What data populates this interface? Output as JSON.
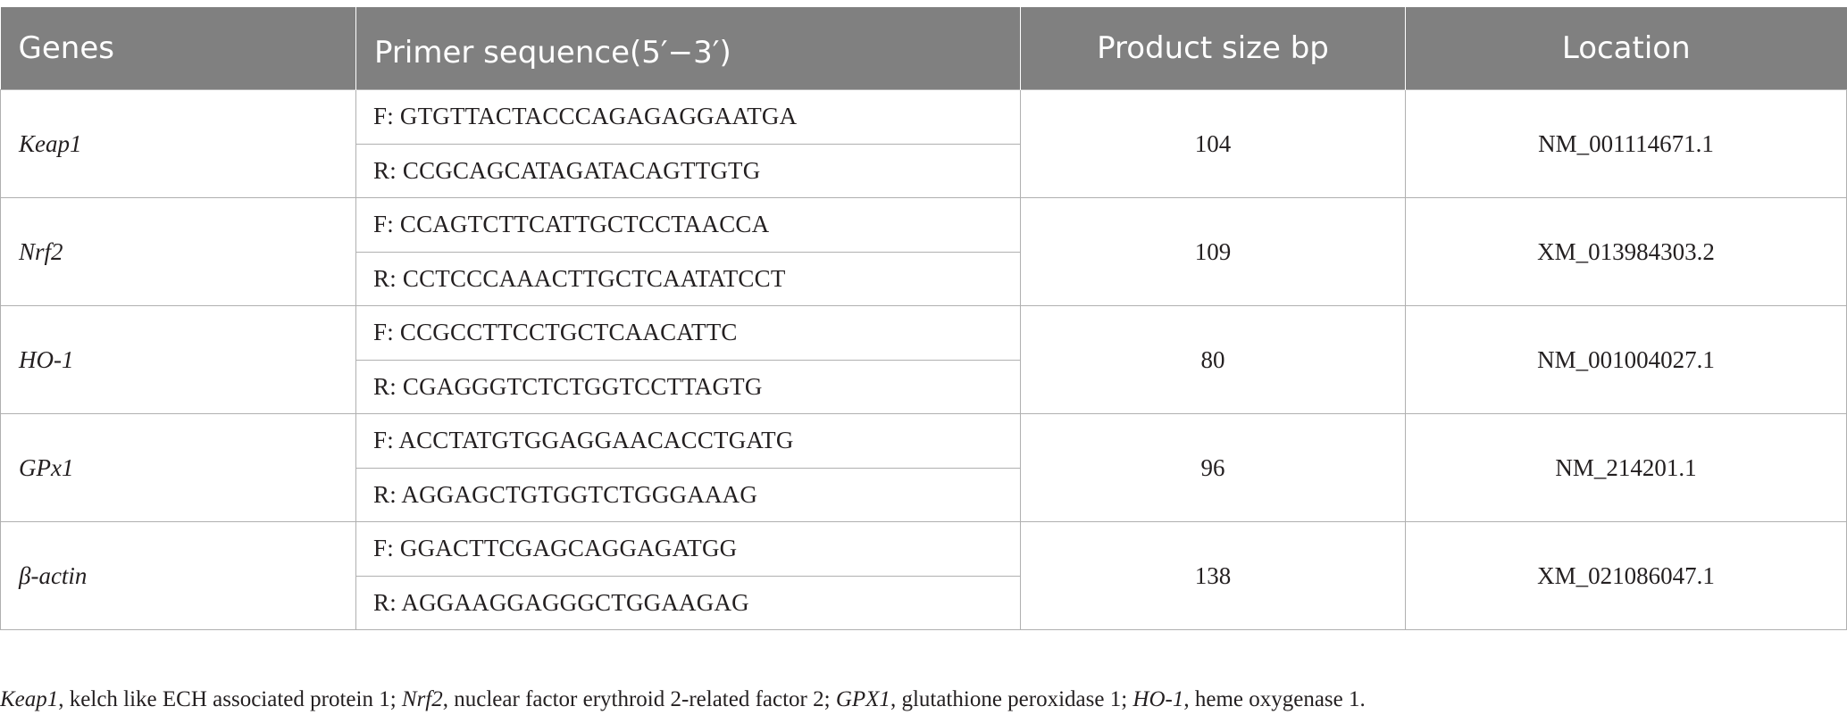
{
  "table": {
    "headers": {
      "genes": "Genes",
      "primer": "Primer sequence(5′−3′)",
      "size": "Product size bp",
      "location": "Location"
    },
    "rows": [
      {
        "gene": "Keap1",
        "forward": "F: GTGTTACTACCCAGAGAGGAATGA",
        "reverse": "R: CCGCAGCATAGATACAGTTGTG",
        "size": "104",
        "location": "NM_001114671.1"
      },
      {
        "gene": "Nrf2",
        "forward": "F: CCAGTCTTCATTGCTCCTAACCA",
        "reverse": "R: CCTCCCAAACTTGCTCAATATCCT",
        "size": "109",
        "location": "XM_013984303.2"
      },
      {
        "gene": "HO-1",
        "forward": "F: CCGCCTTCCTGCTCAACATTC",
        "reverse": "R: CGAGGGTCTCTGGTCCTTAGTG",
        "size": "80",
        "location": "NM_001004027.1"
      },
      {
        "gene": "GPx1",
        "forward": "F: ACCTATGTGGAGGAACACCTGATG",
        "reverse": "R: AGGAGCTGTGGTCTGGGAAAG",
        "size": "96",
        "location": "NM_214201.1"
      },
      {
        "gene": "β-actin",
        "forward": "F: GGACTTCGAGCAGGAGATGG",
        "reverse": "R: AGGAAGGAGGGCTGGAAGAG",
        "size": "138",
        "location": "XM_021086047.1"
      }
    ]
  },
  "footnote": {
    "items": [
      {
        "abbr": "Keap1",
        "text": ", kelch like ECH associated protein 1; "
      },
      {
        "abbr": "Nrf2",
        "text": ", nuclear factor erythroid 2-related factor 2; "
      },
      {
        "abbr": "GPX1",
        "text": ", glutathione peroxidase 1; "
      },
      {
        "abbr": "HO-1",
        "text": ", heme oxygenase 1."
      }
    ]
  }
}
